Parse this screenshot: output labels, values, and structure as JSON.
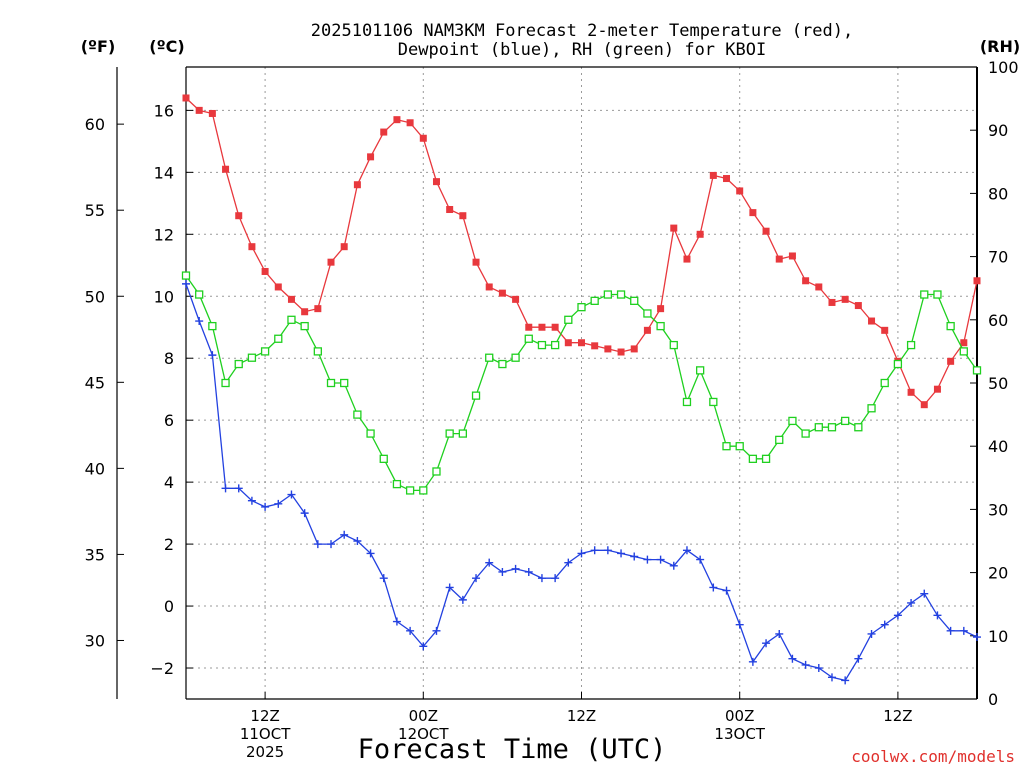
{
  "chart_data": {
    "type": "line",
    "title": "2025101106 NAM3KM Forecast 2-meter Temperature (red),",
    "subtitle": "Dewpoint (blue), RH (green) for KBOI",
    "xlabel": "Forecast Time (UTC)",
    "credit": "coolwx.com/models",
    "units": {
      "fahrenheit": "(ºF)",
      "celsius": "(ºC)",
      "rh": "(RH)"
    },
    "x_range_hours": [
      6,
      66
    ],
    "celsius_range": [
      -3,
      17.4
    ],
    "rh_range": [
      0,
      100
    ],
    "grid": true,
    "celsius_ticks": [
      -2,
      0,
      2,
      4,
      6,
      8,
      10,
      12,
      14,
      16
    ],
    "celsius_tick_labels": [
      "−2",
      "0",
      "2",
      "4",
      "6",
      "8",
      "10",
      "12",
      "14",
      "16"
    ],
    "fahrenheit_ticks": [
      30,
      35,
      40,
      45,
      50,
      55,
      60
    ],
    "fahrenheit_tick_labels": [
      "30",
      "35",
      "40",
      "45",
      "50",
      "55",
      "60"
    ],
    "rh_ticks": [
      0,
      10,
      20,
      30,
      40,
      50,
      60,
      70,
      80,
      90,
      100
    ],
    "rh_tick_labels": [
      "0",
      "10",
      "20",
      "30",
      "40",
      "50",
      "60",
      "70",
      "80",
      "90",
      "100"
    ],
    "x_ticks": [
      {
        "hour": 12,
        "line1": "12Z",
        "line2": "11OCT",
        "line3": "2025"
      },
      {
        "hour": 24,
        "line1": "00Z",
        "line2": "12OCT",
        "line3": ""
      },
      {
        "hour": 36,
        "line1": "12Z",
        "line2": "",
        "line3": ""
      },
      {
        "hour": 48,
        "line1": "00Z",
        "line2": "13OCT",
        "line3": ""
      },
      {
        "hour": 60,
        "line1": "12Z",
        "line2": "",
        "line3": ""
      }
    ],
    "x": [
      6,
      7,
      8,
      9,
      10,
      11,
      12,
      13,
      14,
      15,
      16,
      17,
      18,
      19,
      20,
      21,
      22,
      23,
      24,
      25,
      26,
      27,
      28,
      29,
      30,
      31,
      32,
      33,
      34,
      35,
      36,
      37,
      38,
      39,
      40,
      41,
      42,
      43,
      44,
      45,
      46,
      47,
      48,
      49,
      50,
      51,
      52,
      53,
      54,
      55,
      56,
      57,
      58,
      59,
      60,
      61,
      62,
      63,
      64,
      65,
      66
    ],
    "series": [
      {
        "name": "Temperature",
        "unit": "C",
        "color": "#e8383d",
        "marker": "filled-square",
        "values": [
          16.4,
          16.0,
          15.9,
          14.1,
          12.6,
          11.6,
          10.8,
          10.3,
          9.9,
          9.5,
          9.6,
          11.1,
          11.6,
          13.6,
          14.5,
          15.3,
          15.7,
          15.6,
          15.1,
          13.7,
          12.8,
          12.6,
          11.1,
          10.3,
          10.1,
          9.9,
          9.0,
          9.0,
          9.0,
          8.5,
          8.5,
          8.4,
          8.3,
          8.2,
          8.3,
          8.9,
          9.6,
          12.2,
          11.2,
          12.0,
          13.9,
          13.8,
          13.4,
          12.7,
          12.1,
          11.2,
          11.3,
          10.5,
          10.3,
          9.8,
          9.9,
          9.7,
          9.2,
          8.9,
          7.9,
          6.9,
          6.5,
          7.0,
          7.9,
          8.5,
          10.5
        ]
      },
      {
        "name": "Dewpoint",
        "unit": "C",
        "color": "#2341e0",
        "marker": "plus",
        "values": [
          10.4,
          9.2,
          8.1,
          3.8,
          3.8,
          3.4,
          3.2,
          3.3,
          3.6,
          3.0,
          2.0,
          2.0,
          2.3,
          2.1,
          1.7,
          0.9,
          -0.5,
          -0.8,
          -1.3,
          -0.8,
          0.6,
          0.2,
          0.9,
          1.4,
          1.1,
          1.2,
          1.1,
          0.9,
          0.9,
          1.4,
          1.7,
          1.8,
          1.8,
          1.7,
          1.6,
          1.5,
          1.5,
          1.3,
          1.8,
          1.5,
          0.6,
          0.5,
          -0.6,
          -1.8,
          -1.2,
          -0.9,
          -1.7,
          -1.9,
          -2.0,
          -2.3,
          -2.4,
          -1.7,
          -0.9,
          -0.6,
          -0.3,
          0.1,
          0.4,
          -0.3,
          -0.8,
          -0.8,
          -1.0
        ]
      },
      {
        "name": "RH",
        "unit": "%",
        "color": "#1fd01f",
        "marker": "open-square",
        "values": [
          67,
          64,
          59,
          50,
          53,
          54,
          55,
          57,
          60,
          59,
          55,
          50,
          50,
          45,
          42,
          38,
          34,
          33,
          33,
          36,
          42,
          42,
          48,
          54,
          53,
          54,
          57,
          56,
          56,
          60,
          62,
          63,
          64,
          64,
          63,
          61,
          59,
          56,
          47,
          52,
          47,
          40,
          40,
          38,
          38,
          41,
          44,
          42,
          43,
          43,
          44,
          43,
          46,
          50,
          53,
          56,
          64,
          64,
          59,
          55,
          52
        ]
      }
    ]
  }
}
